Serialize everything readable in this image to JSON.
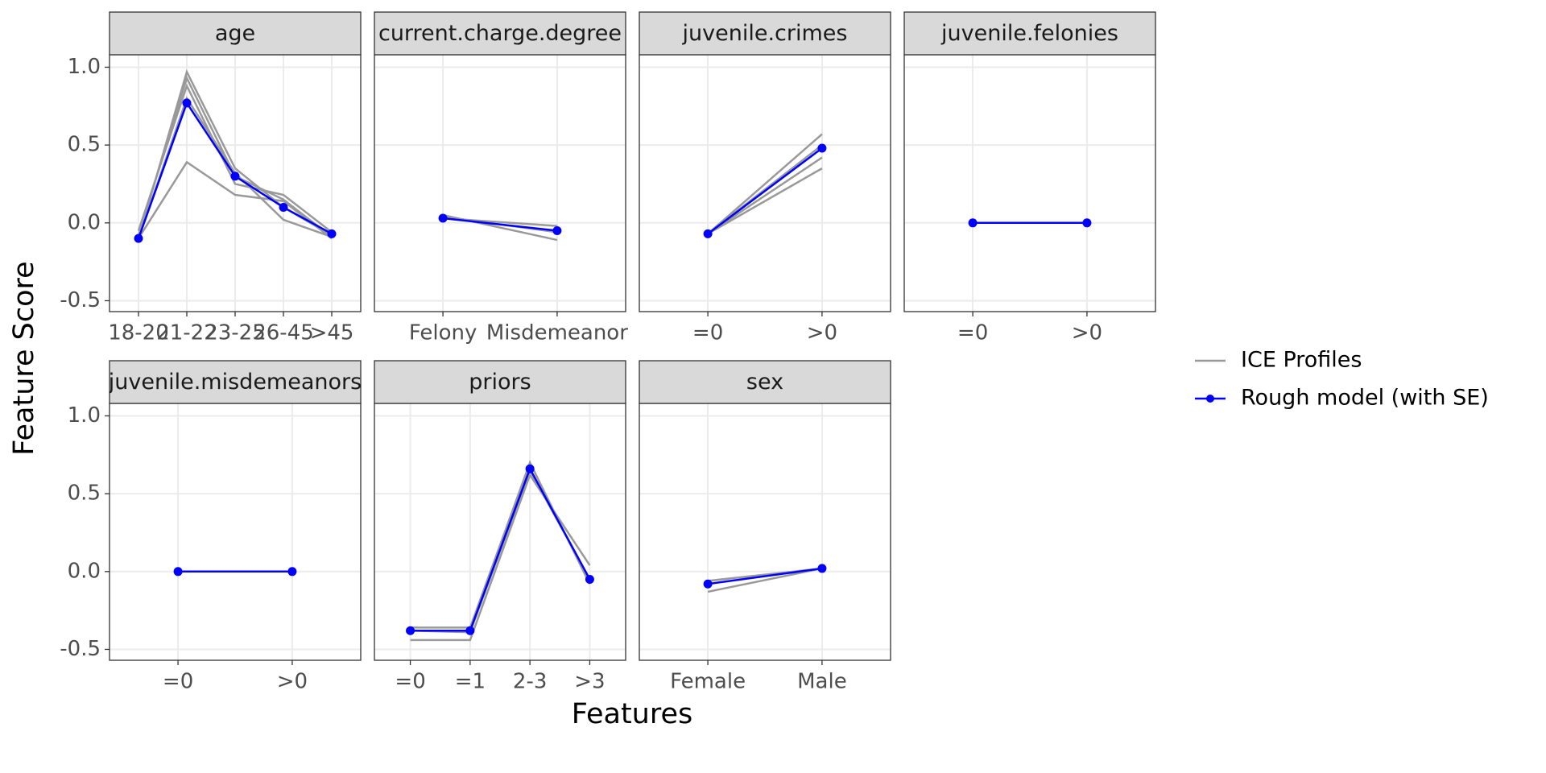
{
  "chart_data": {
    "type": "line",
    "xlabel": "Features",
    "ylabel": "Feature Score",
    "ylim": [
      -0.57,
      1.08
    ],
    "yticks": [
      {
        "value": -0.5,
        "label": "-0.5"
      },
      {
        "value": 0,
        "label": "0.0"
      },
      {
        "value": 0.5,
        "label": "0.5"
      },
      {
        "value": 1,
        "label": "1.0"
      }
    ],
    "grid": true,
    "series": [
      {
        "name": "ICE Profiles",
        "color": "#999999"
      },
      {
        "name": "Rough model (with SE)",
        "color": "#0000ff"
      }
    ],
    "facets": [
      {
        "title": "age",
        "categories": [
          "18-20",
          "21-22",
          "23-25",
          "26-45",
          ">45"
        ],
        "ice": [
          [
            -0.1,
            0.97,
            0.35,
            0.1,
            -0.08
          ],
          [
            -0.08,
            0.93,
            0.3,
            0.15,
            -0.09
          ],
          [
            -0.05,
            0.88,
            0.25,
            0.18,
            -0.06
          ],
          [
            -0.1,
            0.39,
            0.18,
            0.14,
            -0.1
          ],
          [
            -0.1,
            0.8,
            0.32,
            0.02,
            -0.09
          ]
        ],
        "values": [
          -0.1,
          0.77,
          0.3,
          0.1,
          -0.07
        ]
      },
      {
        "title": "current.charge.degree",
        "categories": [
          "Felony",
          "Misdemeanor"
        ],
        "ice": [
          [
            0.05,
            -0.11
          ],
          [
            0.03,
            -0.02
          ],
          [
            0.04,
            -0.06
          ]
        ],
        "values": [
          0.03,
          -0.05
        ]
      },
      {
        "title": "juvenile.crimes",
        "categories": [
          "=0",
          ">0"
        ],
        "ice": [
          [
            -0.07,
            0.57
          ],
          [
            -0.07,
            0.35
          ],
          [
            -0.07,
            0.42
          ],
          [
            -0.07,
            0.5
          ]
        ],
        "values": [
          -0.07,
          0.48
        ]
      },
      {
        "title": "juvenile.felonies",
        "categories": [
          "=0",
          ">0"
        ],
        "ice": [
          [
            0,
            0
          ]
        ],
        "values": [
          0,
          0
        ]
      },
      {
        "title": "juvenile.misdemeanors",
        "categories": [
          "=0",
          ">0"
        ],
        "ice": [
          [
            0,
            0
          ]
        ],
        "values": [
          0,
          0
        ]
      },
      {
        "title": "priors",
        "categories": [
          "=0",
          "=1",
          "2-3",
          ">3"
        ],
        "ice": [
          [
            -0.44,
            -0.44,
            0.62,
            0.04
          ],
          [
            -0.36,
            -0.36,
            0.7,
            -0.08
          ],
          [
            -0.38,
            -0.39,
            0.65,
            -0.05
          ]
        ],
        "values": [
          -0.38,
          -0.38,
          0.66,
          -0.05
        ]
      },
      {
        "title": "sex",
        "categories": [
          "Female",
          "Male"
        ],
        "ice": [
          [
            -0.13,
            0.02
          ],
          [
            -0.06,
            0.02
          ]
        ],
        "values": [
          -0.08,
          0.02
        ]
      }
    ]
  }
}
